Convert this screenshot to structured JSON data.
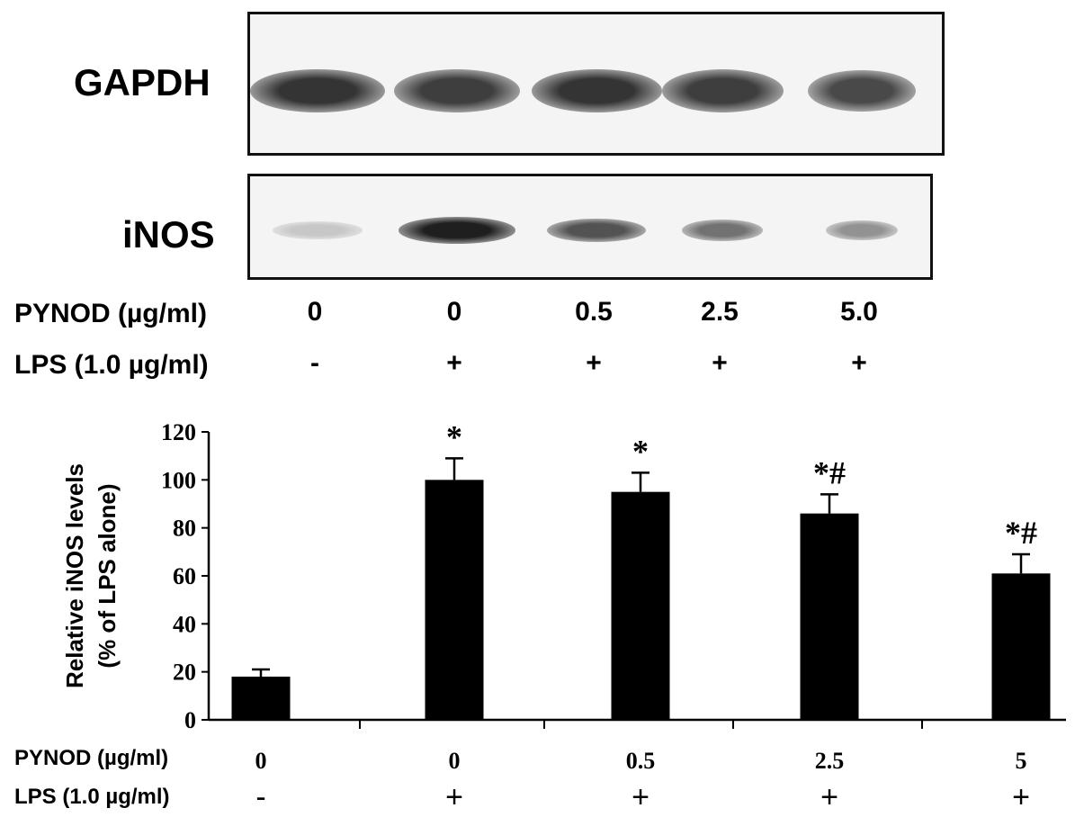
{
  "blot": {
    "rows": [
      {
        "label": "GAPDH",
        "intensities": [
          0.85,
          0.8,
          0.85,
          0.8,
          0.75
        ]
      },
      {
        "label": "iNOS",
        "intensities": [
          0.15,
          0.95,
          0.7,
          0.55,
          0.4
        ]
      }
    ],
    "condition_rows": [
      {
        "label": "PYNOD (µg/ml)",
        "values": [
          "0",
          "0",
          "0.5",
          "2.5",
          "5.0"
        ]
      },
      {
        "label": "LPS (1.0 µg/ml)",
        "values": [
          "-",
          "+",
          "+",
          "+",
          "+"
        ]
      }
    ]
  },
  "chart_data": {
    "type": "bar",
    "ylabel": [
      "Relative iNOS levels",
      "(% of LPS alone)"
    ],
    "ylim": [
      0,
      120
    ],
    "yticks": [
      "0",
      "20",
      "40",
      "60",
      "80",
      "100",
      "120"
    ],
    "values": [
      18,
      100,
      95,
      86,
      61
    ],
    "errors": [
      3,
      9,
      8,
      8,
      8
    ],
    "annotations": [
      "",
      "*",
      "*",
      "*#",
      "*#"
    ],
    "condition_rows": [
      {
        "label": "PYNOD (µg/ml)",
        "values": [
          "0",
          "0",
          "0.5",
          "2.5",
          "5"
        ]
      },
      {
        "label": "LPS (1.0 µg/ml)",
        "values": [
          "-",
          "+",
          "+",
          "+",
          "+"
        ]
      }
    ],
    "bar_color": "#000000"
  }
}
